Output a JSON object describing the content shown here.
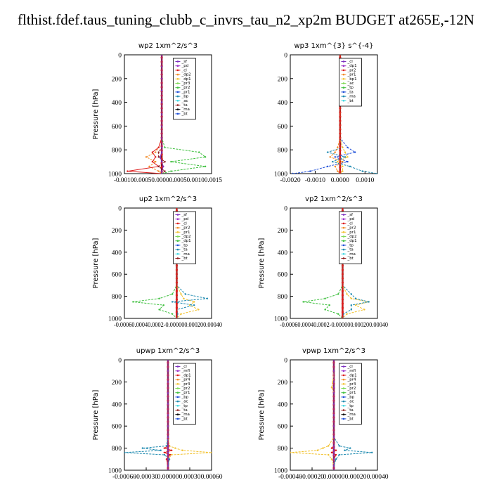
{
  "title": "flthist.fdef.taus_tuning_clubb_c_invrs_tau_n2_xp2m  BUDGET at265E,-12N",
  "colors": {
    "purple": "#7b2fbe",
    "magenta": "#9b30c8",
    "red": "#dd1c1c",
    "orange": "#f28c28",
    "yellow": "#f2c230",
    "green": "#3fc03f",
    "lime": "#7ed957",
    "blue": "#1f4fd8",
    "teal": "#1e8ab0",
    "cyan": "#3ad6e0",
    "darkred": "#8b1a1a",
    "black": "#000000"
  },
  "chart_data": [
    {
      "type": "line",
      "title": "wp2   1xm^2/s^3",
      "ylabel": "Pressure [hPa]",
      "ylim": [
        1000,
        0
      ],
      "xlim": [
        -0.0012,
        0.0016
      ],
      "xticks": [
        "-0.00100.00050.00000.00050.00100.0015"
      ],
      "yticks": [
        "0",
        "200",
        "400",
        "600",
        "800",
        "1000"
      ],
      "legend": [
        "_sf",
        "_pd",
        "_cl",
        "_dp2",
        "_dp1",
        "_pr3",
        "_pr2",
        "_pr1",
        "_bp",
        "_ac",
        "_ta",
        "_ma",
        "_bt"
      ],
      "pressure": [
        0,
        100,
        200,
        300,
        400,
        500,
        600,
        700,
        780,
        820,
        860,
        900,
        940,
        980,
        1000
      ],
      "series": [
        {
          "name": "_pr1",
          "color": "green",
          "values": [
            0,
            0,
            0,
            0,
            0,
            0,
            0,
            0,
            0.0001,
            0.0012,
            0.0014,
            0.0003,
            0.0014,
            0.0003,
            0
          ]
        },
        {
          "name": "_dp1",
          "color": "orange",
          "values": [
            0,
            0,
            0,
            0,
            0,
            0,
            0,
            0,
            -0.0001,
            -0.0002,
            -0.0005,
            -0.0002,
            -0.0004,
            -0.0001,
            0
          ]
        },
        {
          "name": "_dp2",
          "color": "red",
          "values": [
            0,
            0,
            0,
            0,
            0,
            0,
            0,
            0,
            -0.0001,
            -0.0003,
            -0.0002,
            -0.0003,
            -0.0001,
            -0.0011,
            0
          ]
        },
        {
          "name": "_pr2",
          "color": "darkred",
          "values": [
            0,
            0,
            0,
            0,
            0,
            0,
            0,
            0,
            0,
            -0.0001,
            -0.0001,
            0.0001,
            -0.0001,
            0.0001,
            0
          ]
        },
        {
          "name": "_pd",
          "color": "purple",
          "values": [
            0,
            0,
            0,
            0,
            0,
            0,
            0,
            0,
            0,
            0,
            -5e-05,
            0,
            5e-05,
            0,
            0
          ]
        }
      ]
    },
    {
      "type": "line",
      "title": "wp3   1xm^{3} s^{-4}",
      "ylabel": "",
      "ylim": [
        1000,
        0
      ],
      "xlim": [
        -0.002,
        0.0015
      ],
      "xticks": [
        "-0.0020",
        "-0.0010",
        "0.0000",
        "0.0010"
      ],
      "yticks": [
        "0",
        "200",
        "400",
        "600",
        "800",
        "1000"
      ],
      "legend": [
        "_cl",
        "_dp1",
        "_pr2",
        "_pr1",
        "_bp1",
        "_ac",
        "_tp",
        "_ta",
        "_ma",
        "_bt"
      ],
      "pressure": [
        0,
        100,
        200,
        300,
        400,
        500,
        600,
        700,
        780,
        820,
        860,
        900,
        940,
        980,
        1000
      ],
      "series": [
        {
          "name": "_tp",
          "color": "blue",
          "values": [
            0,
            0,
            0,
            0,
            0,
            0,
            0,
            0,
            0.0003,
            0.0006,
            -0.0002,
            0.0003,
            -0.0005,
            -0.0012,
            -0.0019
          ]
        },
        {
          "name": "_ac",
          "color": "teal",
          "values": [
            0,
            0,
            0,
            0,
            0,
            0,
            0,
            0,
            0.0001,
            -0.0005,
            0.0002,
            -0.0003,
            0.0004,
            0.0009,
            0.0015
          ]
        },
        {
          "name": "_pr2",
          "color": "orange",
          "values": [
            0,
            0,
            0,
            0,
            0,
            0,
            0,
            0,
            -0.0001,
            -0.0002,
            -0.0004,
            0.0001,
            -0.0002,
            -0.0001,
            0
          ]
        },
        {
          "name": "_pr1",
          "color": "yellow",
          "values": [
            0,
            0,
            0,
            0,
            0,
            0,
            0,
            0,
            0.0001,
            0.0002,
            0.0003,
            -0.0001,
            0.0001,
            0.0001,
            0
          ]
        },
        {
          "name": "_cl",
          "color": "red",
          "values": [
            0,
            0,
            0,
            0,
            0,
            0,
            0,
            0,
            0,
            0,
            0,
            0,
            0,
            0,
            0
          ]
        }
      ]
    },
    {
      "type": "line",
      "title": "up2   1xm^2/s^3",
      "ylabel": "Pressure [hPa]",
      "ylim": [
        1000,
        0
      ],
      "xlim": [
        -0.0006,
        0.0004
      ],
      "xticks": [
        "-0.00060.00040.0002-0.000000.000200.00040"
      ],
      "yticks": [
        "0",
        "200",
        "400",
        "600",
        "800",
        "1000"
      ],
      "legend": [
        "_sf",
        "_pd",
        "_cl",
        "_pr2",
        "_pr1",
        "_dp2",
        "_dp1",
        "_tp",
        "_ta",
        "_ma",
        "_bt"
      ],
      "pressure": [
        0,
        100,
        150,
        200,
        250,
        300,
        400,
        500,
        600,
        700,
        780,
        820,
        850,
        880,
        920,
        960,
        1000
      ],
      "series": [
        {
          "name": "_dp1",
          "color": "green",
          "values": [
            0,
            0,
            -1e-05,
            -3e-05,
            -2e-05,
            0,
            0,
            0,
            0,
            0,
            -5e-05,
            -0.0002,
            -0.0005,
            -0.00015,
            -0.0002,
            -5e-05,
            0
          ]
        },
        {
          "name": "_pr2",
          "color": "yellow",
          "values": [
            0,
            0,
            1e-05,
            2e-05,
            1e-05,
            0,
            0,
            0,
            0,
            0,
            5e-05,
            8e-05,
            0.0002,
            0.00015,
            0.00025,
            5e-05,
            0
          ]
        },
        {
          "name": "_tp",
          "color": "teal",
          "values": [
            0,
            0,
            0,
            0,
            0,
            0,
            0,
            0,
            0,
            0,
            0.0001,
            0.00035,
            -5e-05,
            0.0002,
            0,
            1e-05,
            0
          ]
        },
        {
          "name": "_cl",
          "color": "red",
          "values": [
            0,
            0,
            0,
            0,
            0,
            0,
            0,
            0,
            0,
            0,
            0,
            0,
            0,
            0,
            0,
            0,
            0
          ]
        }
      ]
    },
    {
      "type": "line",
      "title": "vp2   1xm^2/s^3",
      "ylabel": "Pressure [hPa]",
      "ylim": [
        1000,
        0
      ],
      "xlim": [
        -0.0006,
        0.0004
      ],
      "xticks": [
        "-0.00060.00040.0002-0.000000.000200.00040"
      ],
      "yticks": [
        "0",
        "200",
        "400",
        "600",
        "800",
        "1000"
      ],
      "legend": [
        "_sf",
        "_pd",
        "_cl",
        "_pr2",
        "_pr1",
        "_dp2",
        "_dp1",
        "_tp",
        "_ta",
        "_ma",
        "_bt"
      ],
      "pressure": [
        0,
        100,
        150,
        200,
        250,
        300,
        400,
        500,
        600,
        700,
        780,
        820,
        850,
        880,
        920,
        960,
        1000
      ],
      "series": [
        {
          "name": "_dp1",
          "color": "green",
          "values": [
            0,
            0,
            -1e-05,
            -3e-05,
            -2e-05,
            0,
            0,
            0,
            0,
            0,
            -5e-05,
            -0.0002,
            -0.00045,
            -0.00015,
            -0.0002,
            -5e-05,
            0
          ]
        },
        {
          "name": "_pr2",
          "color": "yellow",
          "values": [
            0,
            0,
            1e-05,
            2e-05,
            1e-05,
            0,
            0,
            0,
            0,
            0,
            5e-05,
            0.0001,
            0.0003,
            0.00015,
            0.00025,
            5e-05,
            0
          ]
        },
        {
          "name": "_tp",
          "color": "teal",
          "values": [
            0,
            0,
            0,
            0,
            0,
            0,
            0,
            0,
            0,
            0,
            0.0001,
            0.00015,
            0.0003,
            0.0001,
            0.0001,
            1e-05,
            0
          ]
        },
        {
          "name": "_cl",
          "color": "red",
          "values": [
            0,
            0,
            0,
            0,
            0,
            0,
            0,
            0,
            0,
            0,
            0,
            0,
            0,
            0,
            0,
            0,
            0
          ]
        }
      ]
    },
    {
      "type": "line",
      "title": "upwp   1xm^2/s^3",
      "ylabel": "Pressure [hPa]",
      "ylim": [
        1000,
        0
      ],
      "xlim": [
        -0.0006,
        0.0006
      ],
      "xticks": [
        "-0.00060",
        "-0.00030",
        "0.00000",
        "0.00030",
        "0.00060"
      ],
      "yticks": [
        "0",
        "200",
        "400",
        "600",
        "800",
        "1000"
      ],
      "legend": [
        "_cl",
        "_mfl",
        "_dp1",
        "_pr4",
        "_pr3",
        "_pr2",
        "_pr1",
        "_bp",
        "_ac",
        "_tp",
        "_ta",
        "_ma",
        "_bt"
      ],
      "pressure": [
        0,
        100,
        200,
        300,
        400,
        500,
        600,
        700,
        780,
        800,
        820,
        840,
        860,
        900,
        960,
        1000
      ],
      "series": [
        {
          "name": "_tp",
          "color": "teal",
          "values": [
            0,
            0,
            0,
            0,
            0,
            0,
            0,
            0,
            -2e-05,
            -0.00035,
            -0.0001,
            -0.0006,
            -5e-05,
            2e-05,
            0,
            0
          ]
        },
        {
          "name": "_pr2",
          "color": "yellow",
          "values": [
            0,
            0,
            0,
            0,
            0,
            0,
            0,
            0,
            2e-05,
            0.0001,
            0.0002,
            0.0006,
            5e-05,
            0,
            0,
            0
          ]
        },
        {
          "name": "_dp1",
          "color": "red",
          "values": [
            0,
            0,
            0,
            0,
            0,
            0,
            0,
            0,
            1e-05,
            -5e-05,
            5e-05,
            -5e-05,
            3e-05,
            -2e-05,
            0,
            0
          ]
        },
        {
          "name": "_cl",
          "color": "purple",
          "values": [
            0,
            0,
            0,
            0,
            0,
            0,
            0,
            0,
            0,
            0,
            0,
            0,
            0,
            0,
            0,
            0
          ]
        }
      ]
    },
    {
      "type": "line",
      "title": "vpwp   1xm^2/s^3",
      "ylabel": "Pressure [hPa]",
      "ylim": [
        1000,
        0
      ],
      "xlim": [
        -0.0004,
        0.0004
      ],
      "xticks": [
        "-0.00040",
        "-0.00020",
        "0.00000",
        "0.00020",
        "0.00040"
      ],
      "yticks": [
        "0",
        "200",
        "400",
        "600",
        "800",
        "1000"
      ],
      "legend": [
        "_cl",
        "_mfl",
        "_dp1",
        "_pr4",
        "_pr3",
        "_pr2",
        "_pr1",
        "_bp",
        "_ac",
        "_tp",
        "_ta",
        "_ma",
        "_bt"
      ],
      "pressure": [
        0,
        100,
        200,
        250,
        300,
        400,
        500,
        600,
        700,
        780,
        800,
        820,
        840,
        860,
        900,
        960,
        1000
      ],
      "series": [
        {
          "name": "_tp",
          "color": "teal",
          "values": [
            0,
            0,
            0,
            0,
            0,
            0,
            0,
            0,
            0,
            5e-05,
            0.00015,
            0.0001,
            0.00035,
            5e-05,
            2e-05,
            0,
            0
          ]
        },
        {
          "name": "_pr2",
          "color": "yellow",
          "values": [
            0,
            0,
            -1e-05,
            -2e-05,
            0,
            0,
            0,
            0,
            0,
            -5e-05,
            -0.0001,
            -0.00015,
            -0.0004,
            -5e-05,
            -2e-05,
            0,
            0
          ]
        },
        {
          "name": "_dp1",
          "color": "red",
          "values": [
            0,
            0,
            0,
            0,
            0,
            0,
            0,
            0,
            0,
            0,
            -2e-05,
            2e-05,
            -2e-05,
            2e-05,
            0,
            0,
            0
          ]
        },
        {
          "name": "_cl",
          "color": "purple",
          "values": [
            0,
            0,
            0,
            0,
            0,
            0,
            0,
            0,
            0,
            0,
            0,
            0,
            0,
            0,
            0,
            0,
            0
          ]
        }
      ]
    }
  ]
}
